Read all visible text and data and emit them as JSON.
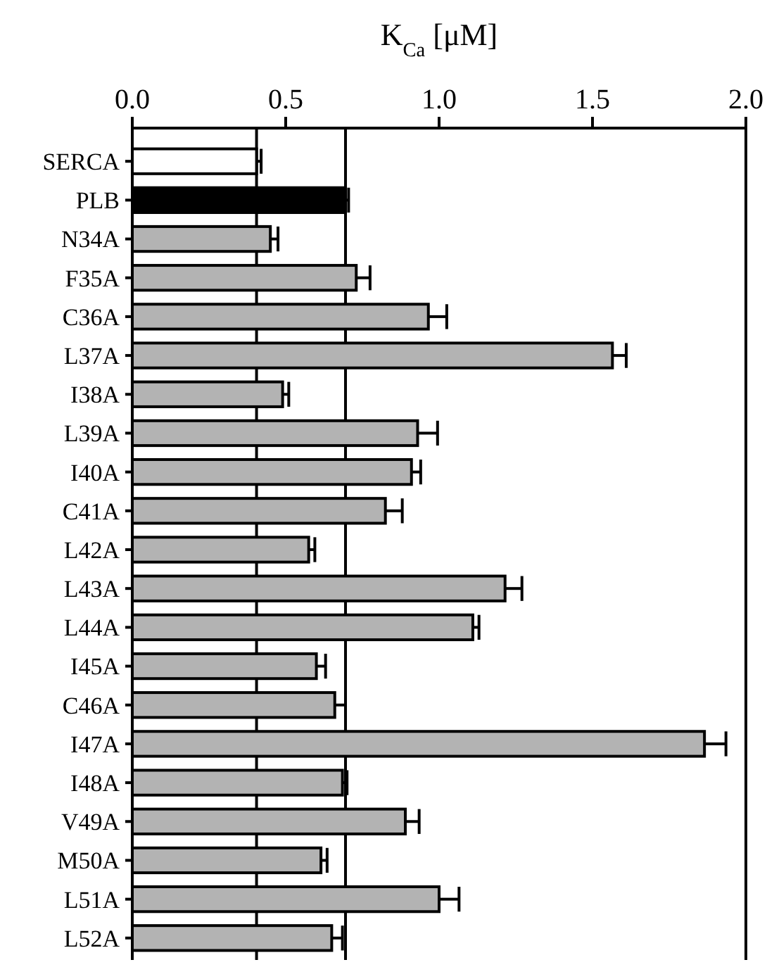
{
  "chart_data": {
    "type": "bar",
    "orientation": "horizontal",
    "xlabel": "K$_{Ca}$ [μM]",
    "categories": [
      "SERCA",
      "PLB",
      "N34A",
      "F35A",
      "C36A",
      "L37A",
      "I38A",
      "L39A",
      "I40A",
      "C41A",
      "L42A",
      "L43A",
      "L44A",
      "I45A",
      "C46A",
      "I47A",
      "I48A",
      "V49A",
      "M50A",
      "L51A",
      "L52A"
    ],
    "values": [
      0.405,
      0.695,
      0.45,
      0.73,
      0.965,
      1.565,
      0.49,
      0.93,
      0.91,
      0.825,
      0.575,
      1.215,
      1.11,
      0.6,
      0.66,
      1.865,
      0.685,
      0.89,
      0.615,
      1.0,
      0.65
    ],
    "errors": [
      [
        0.405,
        0.42
      ],
      [
        0.695,
        0.705
      ],
      [
        0.45,
        0.475
      ],
      [
        0.73,
        0.775
      ],
      [
        0.965,
        1.025
      ],
      [
        1.565,
        1.61
      ],
      [
        0.49,
        0.51
      ],
      [
        0.93,
        0.995
      ],
      [
        0.91,
        0.94
      ],
      [
        0.825,
        0.88
      ],
      [
        0.575,
        0.595
      ],
      [
        1.215,
        1.27
      ],
      [
        1.11,
        1.13
      ],
      [
        0.6,
        0.63
      ],
      [
        0.66,
        0.695
      ],
      [
        1.865,
        1.935
      ],
      [
        0.685,
        0.7
      ],
      [
        0.89,
        0.935
      ],
      [
        0.615,
        0.635
      ],
      [
        1.0,
        1.065
      ],
      [
        0.65,
        0.685
      ]
    ],
    "colors": [
      "#ffffff",
      "#000000",
      "#b3b3b3",
      "#b3b3b3",
      "#b3b3b3",
      "#b3b3b3",
      "#b3b3b3",
      "#b3b3b3",
      "#b3b3b3",
      "#b3b3b3",
      "#b3b3b3",
      "#b3b3b3",
      "#b3b3b3",
      "#b3b3b3",
      "#b3b3b3",
      "#b3b3b3",
      "#b3b3b3",
      "#b3b3b3",
      "#b3b3b3",
      "#b3b3b3",
      "#b3b3b3"
    ],
    "xlim": [
      0,
      2
    ],
    "xticks": [
      {
        "value": 0,
        "label": "0.0"
      },
      {
        "value": 0.5,
        "label": "0.5"
      },
      {
        "value": 1,
        "label": "1.0"
      },
      {
        "value": 1.5,
        "label": "1.5"
      },
      {
        "value": 2,
        "label": "2.0"
      }
    ],
    "ref_lines": [
      {
        "axis": "x",
        "value": 0.405
      },
      {
        "axis": "x",
        "value": 0.695
      }
    ],
    "grid": false
  }
}
